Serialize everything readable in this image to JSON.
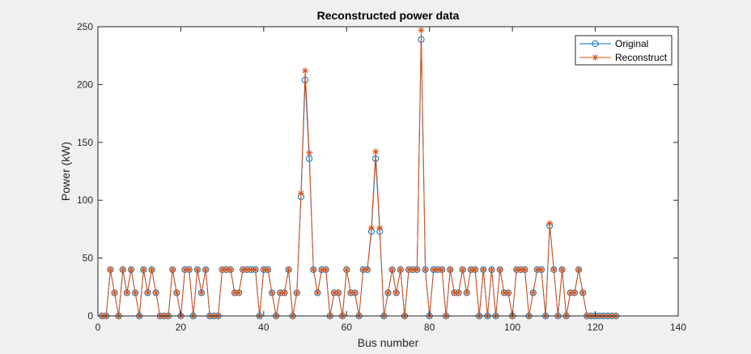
{
  "chart_data": {
    "type": "line",
    "title": "Reconstructed power data",
    "xlabel": "Bus number",
    "ylabel": "Power (kW)",
    "xlim": [
      0,
      140
    ],
    "ylim": [
      0,
      250
    ],
    "xticks": [
      "0",
      "20",
      "40",
      "60",
      "80",
      "100",
      "120",
      "140"
    ],
    "yticks": [
      "0",
      "50",
      "100",
      "150",
      "200",
      "250"
    ],
    "grid": false,
    "legend_position": "top-right",
    "x": [
      1,
      2,
      3,
      4,
      5,
      6,
      7,
      8,
      9,
      10,
      11,
      12,
      13,
      14,
      15,
      16,
      17,
      18,
      19,
      20,
      21,
      22,
      23,
      24,
      25,
      26,
      27,
      28,
      29,
      30,
      31,
      32,
      33,
      34,
      35,
      36,
      37,
      38,
      39,
      40,
      41,
      42,
      43,
      44,
      45,
      46,
      47,
      48,
      49,
      50,
      51,
      52,
      53,
      54,
      55,
      56,
      57,
      58,
      59,
      60,
      61,
      62,
      63,
      64,
      65,
      66,
      67,
      68,
      69,
      70,
      71,
      72,
      73,
      74,
      75,
      76,
      77,
      78,
      79,
      80,
      81,
      82,
      83,
      84,
      85,
      86,
      87,
      88,
      89,
      90,
      91,
      92,
      93,
      94,
      95,
      96,
      97,
      98,
      99,
      100,
      101,
      102,
      103,
      104,
      105,
      106,
      107,
      108,
      109,
      110,
      111,
      112,
      113,
      114,
      115,
      116,
      117,
      118,
      119,
      120,
      121,
      122,
      123,
      124,
      125
    ],
    "series": [
      {
        "name": "Original",
        "color": "#0072bd",
        "marker": "circle",
        "values": [
          0,
          0,
          40,
          20,
          0,
          40,
          20,
          40,
          20,
          0,
          40,
          20,
          40,
          20,
          0,
          0,
          0,
          40,
          20,
          0,
          40,
          40,
          0,
          40,
          20,
          40,
          0,
          0,
          0,
          40,
          40,
          40,
          20,
          20,
          40,
          40,
          40,
          40,
          0,
          40,
          40,
          20,
          0,
          20,
          20,
          40,
          0,
          20,
          103,
          204,
          136,
          40,
          20,
          40,
          40,
          0,
          20,
          20,
          0,
          40,
          20,
          20,
          0,
          40,
          40,
          73,
          136,
          73,
          0,
          20,
          40,
          20,
          40,
          0,
          40,
          40,
          40,
          239,
          40,
          0,
          40,
          40,
          40,
          0,
          40,
          20,
          20,
          40,
          20,
          40,
          40,
          0,
          40,
          0,
          40,
          0,
          40,
          20,
          20,
          0,
          40,
          40,
          40,
          0,
          20,
          40,
          40,
          0,
          78,
          40,
          0,
          40,
          0,
          20,
          20,
          40,
          20,
          0,
          0,
          0,
          0,
          0,
          0,
          0,
          0
        ]
      },
      {
        "name": "Reconstruct",
        "color": "#d95319",
        "marker": "asterisk",
        "values": [
          0,
          0,
          40,
          20,
          0,
          40,
          20,
          40,
          20,
          0,
          40,
          20,
          40,
          20,
          0,
          0,
          0,
          40,
          20,
          0,
          40,
          40,
          0,
          40,
          20,
          40,
          0,
          0,
          0,
          40,
          40,
          40,
          20,
          20,
          40,
          40,
          40,
          40,
          0,
          40,
          40,
          20,
          0,
          20,
          20,
          40,
          0,
          20,
          106,
          212,
          141,
          40,
          20,
          40,
          40,
          0,
          20,
          20,
          0,
          40,
          20,
          20,
          0,
          40,
          40,
          76,
          142,
          76,
          0,
          20,
          40,
          20,
          40,
          0,
          40,
          40,
          40,
          247,
          40,
          0,
          40,
          40,
          40,
          0,
          40,
          20,
          20,
          40,
          20,
          40,
          40,
          0,
          40,
          0,
          40,
          0,
          40,
          20,
          20,
          0,
          40,
          40,
          40,
          0,
          20,
          40,
          40,
          0,
          80,
          40,
          0,
          40,
          0,
          20,
          20,
          40,
          20,
          0,
          0,
          0,
          0,
          0,
          0,
          0,
          0
        ]
      }
    ]
  }
}
